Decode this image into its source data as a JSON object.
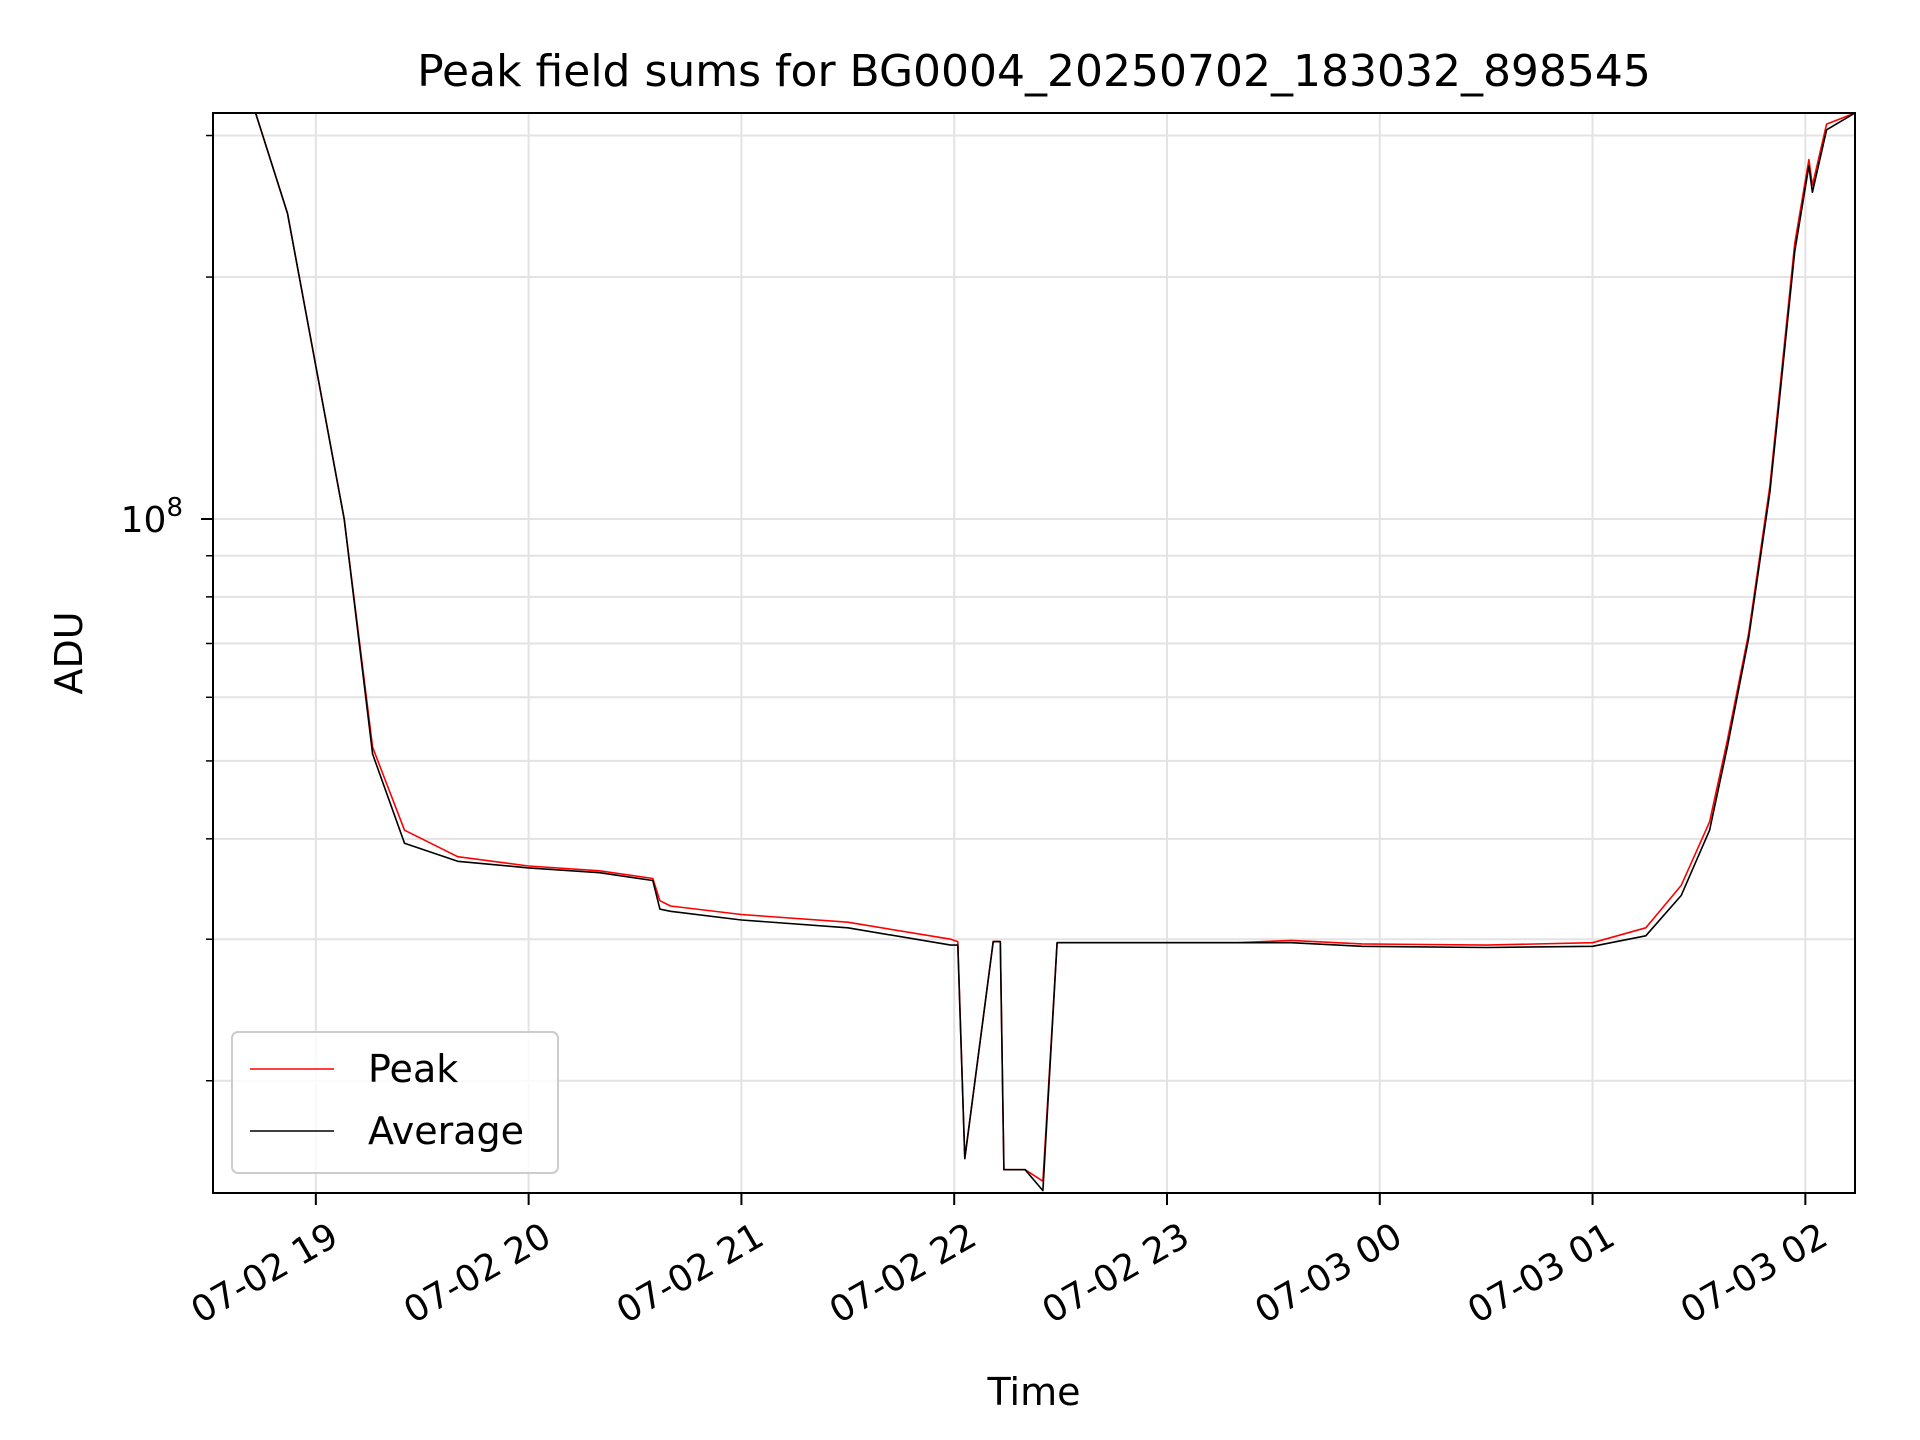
{
  "chart_data": {
    "type": "line",
    "title": "Peak field sums for BG0004_20250702_183032_898545",
    "xlabel": "Time",
    "ylabel": "ADU",
    "y_scale": "log",
    "y_tick_label": {
      "base": "10",
      "exponent": "8",
      "value": 100000000
    },
    "ylim": [
      14500000,
      320000000
    ],
    "xlim": [
      "2025-07-02 18:31",
      "2025-07-03 02:14"
    ],
    "x_tick_labels": [
      {
        "label": "07-02 19",
        "time": "2025-07-02 19:00"
      },
      {
        "label": "07-02 20",
        "time": "2025-07-02 20:00"
      },
      {
        "label": "07-02 21",
        "time": "2025-07-02 21:00"
      },
      {
        "label": "07-02 22",
        "time": "2025-07-02 22:00"
      },
      {
        "label": "07-02 23",
        "time": "2025-07-02 23:00"
      },
      {
        "label": "07-03 00",
        "time": "2025-07-03 00:00"
      },
      {
        "label": "07-03 01",
        "time": "2025-07-03 01:00"
      },
      {
        "label": "07-03 02",
        "time": "2025-07-03 02:00"
      }
    ],
    "grid": true,
    "legend_position": "lower-left",
    "series": [
      {
        "name": "Peak",
        "color": "#ff0000",
        "x": [
          "2025-07-02 18:31",
          "2025-07-02 18:43",
          "2025-07-02 18:52",
          "2025-07-02 19:08",
          "2025-07-02 19:16",
          "2025-07-02 19:25",
          "2025-07-02 19:40",
          "2025-07-02 20:00",
          "2025-07-02 20:20",
          "2025-07-02 20:35",
          "2025-07-02 20:37",
          "2025-07-02 20:40",
          "2025-07-02 21:00",
          "2025-07-02 21:30",
          "2025-07-02 21:59",
          "2025-07-02 22:01",
          "2025-07-02 22:03",
          "2025-07-02 22:11",
          "2025-07-02 22:13",
          "2025-07-02 22:14",
          "2025-07-02 22:20",
          "2025-07-02 22:25",
          "2025-07-02 22:29",
          "2025-07-02 22:50",
          "2025-07-02 23:20",
          "2025-07-02 23:35",
          "2025-07-02 23:55",
          "2025-07-03 00:30",
          "2025-07-03 01:00",
          "2025-07-03 01:15",
          "2025-07-03 01:25",
          "2025-07-03 01:33",
          "2025-07-03 01:38",
          "2025-07-03 01:44",
          "2025-07-03 01:50",
          "2025-07-03 01:57",
          "2025-07-03 02:01",
          "2025-07-03 02:02",
          "2025-07-03 02:06",
          "2025-07-03 02:14"
        ],
        "y": [
          320000000,
          320000000,
          240000000,
          100000000,
          52000000,
          41000000,
          38000000,
          37000000,
          36500000,
          35700000,
          33500000,
          33000000,
          32200000,
          31500000,
          30000000,
          29800000,
          16000000,
          29800000,
          29800000,
          15500000,
          15500000,
          15000000,
          29700000,
          29700000,
          29700000,
          29900000,
          29600000,
          29500000,
          29700000,
          31000000,
          35000000,
          42000000,
          53000000,
          72000000,
          110000000,
          220000000,
          280000000,
          260000000,
          310000000,
          320000000
        ]
      },
      {
        "name": "Average",
        "color": "#000000",
        "x": [
          "2025-07-02 18:31",
          "2025-07-02 18:43",
          "2025-07-02 18:52",
          "2025-07-02 19:08",
          "2025-07-02 19:16",
          "2025-07-02 19:25",
          "2025-07-02 19:40",
          "2025-07-02 20:00",
          "2025-07-02 20:20",
          "2025-07-02 20:35",
          "2025-07-02 20:37",
          "2025-07-02 20:40",
          "2025-07-02 21:00",
          "2025-07-02 21:30",
          "2025-07-02 21:59",
          "2025-07-02 22:01",
          "2025-07-02 22:03",
          "2025-07-02 22:11",
          "2025-07-02 22:13",
          "2025-07-02 22:14",
          "2025-07-02 22:20",
          "2025-07-02 22:25",
          "2025-07-02 22:29",
          "2025-07-02 22:50",
          "2025-07-02 23:20",
          "2025-07-02 23:35",
          "2025-07-02 23:55",
          "2025-07-03 00:30",
          "2025-07-03 01:00",
          "2025-07-03 01:15",
          "2025-07-03 01:25",
          "2025-07-03 01:33",
          "2025-07-03 01:38",
          "2025-07-03 01:44",
          "2025-07-03 01:50",
          "2025-07-03 01:57",
          "2025-07-03 02:01",
          "2025-07-03 02:02",
          "2025-07-03 02:06",
          "2025-07-03 02:14"
        ],
        "y": [
          320000000,
          320000000,
          240000000,
          100000000,
          51000000,
          39500000,
          37500000,
          36800000,
          36300000,
          35500000,
          32700000,
          32500000,
          31700000,
          31000000,
          29500000,
          29500000,
          16000000,
          29800000,
          29800000,
          15500000,
          15500000,
          14600000,
          29700000,
          29700000,
          29700000,
          29700000,
          29400000,
          29300000,
          29400000,
          30300000,
          34000000,
          41000000,
          52000000,
          71000000,
          108000000,
          215000000,
          275000000,
          255000000,
          305000000,
          320000000
        ]
      }
    ]
  }
}
